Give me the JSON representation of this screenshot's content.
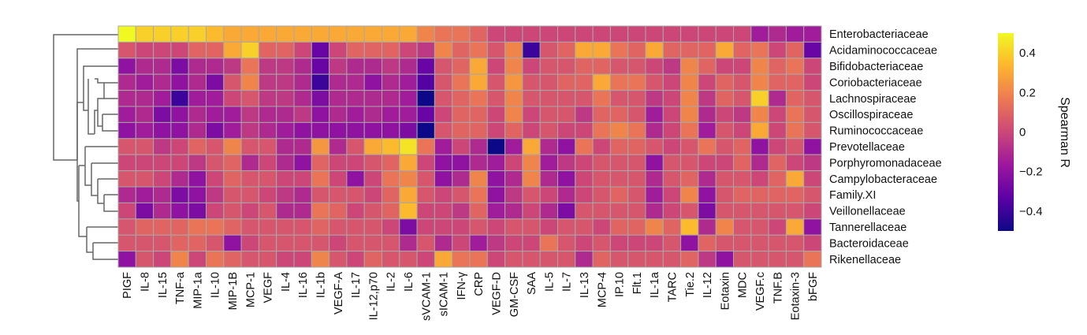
{
  "chart_data": {
    "type": "heatmap",
    "rows": [
      "Enterobacteriaceae",
      "Acidaminococcaceae",
      "Bifidobacteriaceae",
      "Coriobacteriaceae",
      "Lachnospiraceae",
      "Oscillospiraceae",
      "Ruminococcaceae",
      "Prevotellaceae",
      "Porphyromonadaceae",
      "Campylobacteraceae",
      "Family.XI",
      "Veillonellaceae",
      "Tannerellaceae",
      "Bacteroidaceae",
      "Rikenellaceae"
    ],
    "columns": [
      "PIGF",
      "IL-8",
      "IL-15",
      "TNF-a",
      "MIP-1a",
      "IL-10",
      "MIP-1B",
      "MCP-1",
      "VEGF",
      "IL-4",
      "IL-16",
      "IL-1b",
      "VEGF-A",
      "IL-17",
      "IL-12,p70",
      "IL-2",
      "IL-6",
      "sVCAM-1",
      "sICAM-1",
      "IFN-γ",
      "CRP",
      "VEGF-D",
      "GM-CSF",
      "SAA",
      "IL-5",
      "IL-7",
      "IL-13",
      "MCP-4",
      "IP.10",
      "Flt.1",
      "IL-1a",
      "TARC",
      "Tie.2",
      "IL-12",
      "Eotaxin",
      "MDC",
      "VEGF.c",
      "TNF.B",
      "Eotaxin-3",
      "bFGF"
    ],
    "values": [
      [
        0.5,
        0.4,
        0.4,
        0.4,
        0.4,
        0.35,
        0.3,
        0.3,
        0.3,
        0.3,
        0.3,
        0.3,
        0.3,
        0.3,
        0.3,
        0.3,
        0.3,
        0.2,
        0.15,
        0.15,
        0.1,
        0.0,
        0.0,
        0.0,
        0.0,
        0.0,
        0.0,
        0.0,
        0.0,
        0.0,
        0.0,
        0.0,
        0.0,
        0.0,
        0.0,
        0.0,
        -0.15,
        -0.1,
        -0.15,
        -0.15
      ],
      [
        0.05,
        0.0,
        0.0,
        0.0,
        0.1,
        0.1,
        0.3,
        0.4,
        0.1,
        0.1,
        0.0,
        -0.3,
        0.0,
        0.1,
        0.1,
        0.1,
        0.0,
        -0.05,
        0.2,
        0.1,
        0.15,
        0.05,
        0.2,
        -0.4,
        0.05,
        0.1,
        0.3,
        0.3,
        0.15,
        0.1,
        0.3,
        0.1,
        0.1,
        0.1,
        0.3,
        0.1,
        0.15,
        0.0,
        0.1,
        -0.3
      ],
      [
        -0.2,
        -0.1,
        -0.1,
        -0.25,
        -0.1,
        -0.1,
        -0.05,
        0.15,
        -0.05,
        -0.05,
        -0.1,
        -0.3,
        -0.05,
        -0.1,
        -0.1,
        -0.05,
        -0.1,
        -0.3,
        0.05,
        0.1,
        0.3,
        0.0,
        0.2,
        0.0,
        0.05,
        0.05,
        0.1,
        0.1,
        0.05,
        0.05,
        0.0,
        -0.05,
        0.2,
        0.1,
        0.0,
        0.0,
        0.2,
        0.1,
        0.15,
        0.0
      ],
      [
        -0.1,
        -0.15,
        -0.1,
        -0.2,
        -0.1,
        -0.25,
        0.05,
        0.2,
        -0.05,
        -0.05,
        -0.1,
        -0.4,
        -0.1,
        -0.1,
        -0.2,
        -0.1,
        -0.15,
        -0.35,
        0.05,
        0.15,
        0.3,
        0.05,
        0.25,
        0.05,
        0.05,
        0.1,
        0.1,
        0.3,
        0.15,
        0.15,
        0.05,
        0.0,
        0.2,
        0.0,
        0.1,
        0.05,
        0.2,
        0.1,
        0.1,
        0.0
      ],
      [
        -0.1,
        -0.1,
        -0.15,
        -0.4,
        -0.15,
        -0.15,
        0.0,
        0.05,
        -0.05,
        -0.05,
        -0.1,
        -0.25,
        -0.1,
        -0.1,
        -0.1,
        -0.1,
        -0.15,
        -0.5,
        0.05,
        0.1,
        0.15,
        0.05,
        0.2,
        0.05,
        0.05,
        0.05,
        0.05,
        0.15,
        0.05,
        0.05,
        -0.05,
        0.0,
        0.2,
        -0.05,
        0.1,
        0.05,
        0.4,
        -0.1,
        0.1,
        0.05
      ],
      [
        -0.15,
        -0.1,
        -0.25,
        -0.2,
        -0.1,
        -0.15,
        -0.15,
        -0.05,
        -0.1,
        -0.1,
        -0.05,
        -0.2,
        -0.1,
        -0.15,
        -0.1,
        -0.15,
        -0.15,
        -0.3,
        0.0,
        0.1,
        0.1,
        0.0,
        0.2,
        0.0,
        0.05,
        0.05,
        -0.05,
        0.1,
        0.1,
        0.05,
        -0.15,
        0.0,
        0.2,
        -0.1,
        0.0,
        -0.05,
        0.2,
        0.0,
        0.15,
        0.05
      ],
      [
        -0.2,
        -0.15,
        -0.2,
        -0.2,
        -0.1,
        -0.25,
        -0.15,
        -0.05,
        -0.1,
        -0.15,
        -0.2,
        -0.2,
        -0.2,
        -0.2,
        -0.2,
        -0.2,
        -0.25,
        -0.5,
        0.05,
        0.1,
        0.1,
        0.0,
        0.1,
        0.0,
        0.05,
        0.0,
        0.0,
        0.15,
        0.2,
        0.15,
        -0.1,
        0.0,
        0.15,
        -0.15,
        0.05,
        0.0,
        0.3,
        0.0,
        0.15,
        0.05
      ],
      [
        0.05,
        0.05,
        -0.05,
        0.0,
        0.1,
        0.05,
        0.2,
        0.05,
        0.05,
        -0.1,
        -0.1,
        0.25,
        -0.1,
        0.05,
        0.3,
        0.35,
        0.45,
        0.15,
        -0.15,
        0.0,
        -0.1,
        -0.5,
        -0.15,
        0.3,
        -0.1,
        -0.2,
        0.15,
        0.0,
        0.1,
        0.1,
        0.05,
        0.0,
        0.05,
        0.15,
        0.05,
        0.1,
        -0.2,
        0.0,
        0.05,
        -0.2
      ],
      [
        0.0,
        0.0,
        0.0,
        0.0,
        -0.05,
        0.05,
        0.1,
        -0.1,
        0.0,
        -0.1,
        -0.2,
        0.1,
        0.0,
        0.0,
        0.05,
        0.1,
        0.3,
        0.0,
        -0.2,
        -0.2,
        -0.1,
        -0.15,
        0.0,
        0.2,
        -0.15,
        -0.05,
        0.0,
        0.05,
        0.05,
        0.05,
        -0.2,
        0.05,
        0.05,
        0.0,
        0.0,
        0.1,
        -0.1,
        0.1,
        0.0,
        -0.05
      ],
      [
        0.05,
        0.05,
        0.0,
        -0.1,
        -0.2,
        0.0,
        0.1,
        0.05,
        0.05,
        0.0,
        0.0,
        0.15,
        0.0,
        -0.2,
        0.0,
        0.15,
        0.2,
        0.05,
        -0.2,
        -0.1,
        0.2,
        -0.2,
        -0.1,
        0.2,
        -0.1,
        -0.2,
        0.0,
        0.05,
        0.05,
        0.05,
        -0.1,
        0.05,
        0.1,
        -0.1,
        0.05,
        0.05,
        0.0,
        0.1,
        0.3,
        0.0
      ],
      [
        -0.1,
        -0.15,
        -0.1,
        -0.25,
        -0.2,
        -0.05,
        0.05,
        0.05,
        0.0,
        -0.05,
        -0.1,
        0.05,
        0.05,
        0.05,
        0.0,
        0.1,
        0.3,
        0.05,
        0.0,
        0.05,
        0.15,
        -0.2,
        -0.05,
        0.05,
        0.0,
        -0.1,
        0.0,
        0.05,
        0.1,
        0.05,
        -0.15,
        0.0,
        0.2,
        -0.2,
        0.05,
        0.1,
        0.1,
        0.1,
        0.1,
        0.05
      ],
      [
        0.0,
        -0.25,
        -0.1,
        -0.2,
        -0.25,
        0.0,
        0.05,
        0.0,
        0.05,
        -0.1,
        -0.1,
        0.15,
        0.1,
        0.0,
        0.05,
        0.1,
        0.35,
        0.0,
        0.0,
        -0.05,
        0.1,
        -0.15,
        -0.1,
        0.0,
        -0.1,
        -0.25,
        0.05,
        0.05,
        0.05,
        0.05,
        -0.1,
        0.0,
        0.05,
        -0.25,
        0.05,
        0.05,
        0.05,
        0.05,
        0.05,
        0.0
      ],
      [
        0.05,
        0.1,
        0.1,
        0.1,
        0.15,
        0.15,
        0.1,
        0.05,
        0.05,
        0.05,
        0.05,
        0.1,
        0.05,
        0.05,
        0.05,
        0.0,
        -0.25,
        0.0,
        0.0,
        0.0,
        0.05,
        0.0,
        0.05,
        0.05,
        0.0,
        0.05,
        0.05,
        0.0,
        0.1,
        0.1,
        0.2,
        0.1,
        0.35,
        -0.1,
        0.2,
        0.05,
        0.05,
        0.0,
        0.3,
        -0.2
      ],
      [
        0.05,
        0.05,
        0.05,
        0.1,
        0.1,
        0.05,
        -0.2,
        0.0,
        0.05,
        0.05,
        0.05,
        0.05,
        0.0,
        0.05,
        0.05,
        0.05,
        -0.1,
        0.05,
        -0.1,
        0.0,
        -0.15,
        -0.05,
        0.0,
        0.0,
        0.15,
        0.05,
        0.0,
        0.05,
        0.0,
        0.0,
        0.0,
        0.05,
        -0.2,
        0.1,
        0.05,
        0.05,
        0.05,
        0.05,
        0.05,
        0.0
      ],
      [
        -0.2,
        0.05,
        0.0,
        0.2,
        0.0,
        0.15,
        0.1,
        0.05,
        0.05,
        0.0,
        0.0,
        0.2,
        0.05,
        0.0,
        0.1,
        0.05,
        0.05,
        0.0,
        0.3,
        0.15,
        0.15,
        0.0,
        0.05,
        0.05,
        0.05,
        0.05,
        -0.1,
        0.1,
        0.05,
        0.05,
        0.05,
        0.05,
        0.1,
        -0.05,
        -0.2,
        0.05,
        0.05,
        0.05,
        0.05,
        0.15
      ]
    ],
    "colorbar": {
      "title": "Spearman R",
      "ticks": [
        0.4,
        0.2,
        0,
        -0.2,
        -0.4
      ],
      "tick_labels": [
        "0.4",
        "0.2",
        "0",
        "−0.2",
        "−0.4"
      ],
      "range": [
        -0.5,
        0.5
      ],
      "colormap": [
        "#0d0887",
        "#5c01a6",
        "#9c179e",
        "#cc4778",
        "#ed7953",
        "#fdb42f",
        "#f0f921"
      ]
    },
    "dendrogram": "rows clustered, tree on left"
  }
}
